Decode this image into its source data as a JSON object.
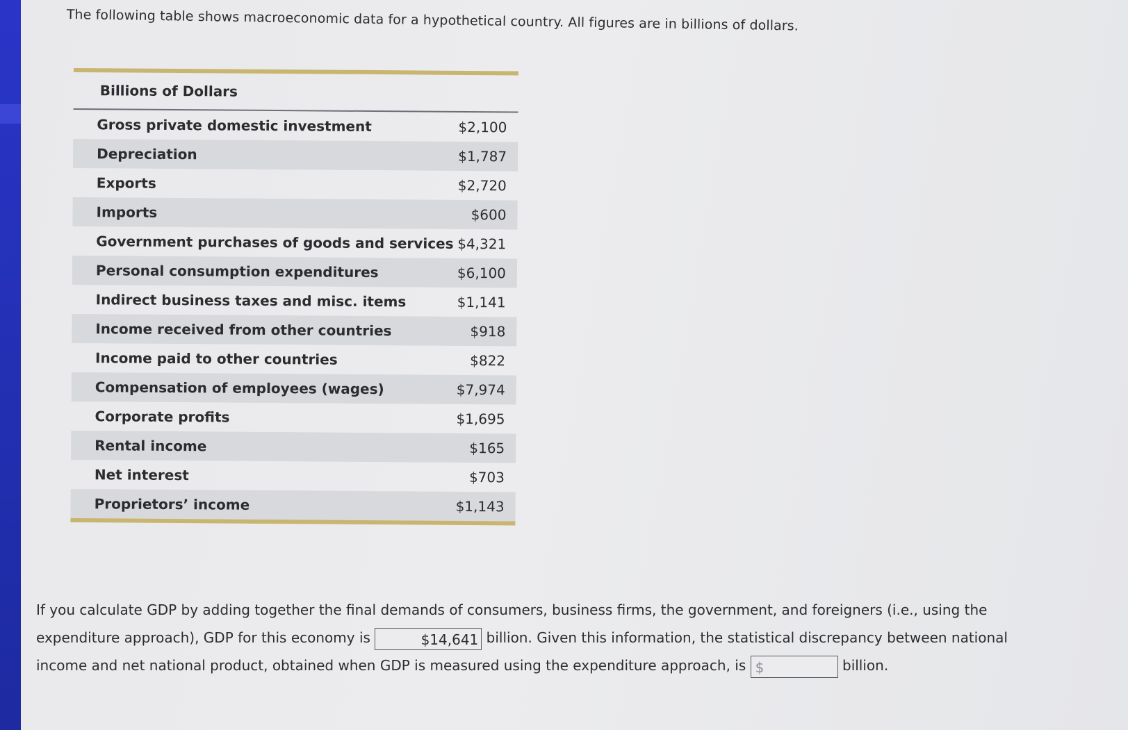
{
  "intro": "The following table shows macroeconomic data for a hypothetical country. All figures are in billions of dollars.",
  "table": {
    "header": "Billions of Dollars",
    "rows": [
      {
        "label": "Gross private domestic investment",
        "value": "$2,100"
      },
      {
        "label": "Depreciation",
        "value": "$1,787"
      },
      {
        "label": "Exports",
        "value": "$2,720"
      },
      {
        "label": "Imports",
        "value": "$600"
      },
      {
        "label": "Government purchases of goods and services",
        "value": "$4,321"
      },
      {
        "label": "Personal consumption expenditures",
        "value": "$6,100"
      },
      {
        "label": "Indirect business taxes and misc. items",
        "value": "$1,141"
      },
      {
        "label": "Income received from other countries",
        "value": "$918"
      },
      {
        "label": "Income paid to other countries",
        "value": "$822"
      },
      {
        "label": "Compensation of employees (wages)",
        "value": "$7,974"
      },
      {
        "label": "Corporate profits",
        "value": "$1,695"
      },
      {
        "label": "Rental income",
        "value": "$165"
      },
      {
        "label": "Net interest",
        "value": "$703"
      },
      {
        "label": "Proprietors’ income",
        "value": "$1,143"
      }
    ]
  },
  "question": {
    "part1": "If you calculate GDP by adding together the final demands of consumers, business firms, the government, and foreigners (i.e., using the expenditure approach), GDP for this economy is",
    "gdp_value": "$14,641",
    "part2": "billion. Given this information, the statistical discrepancy between national income and net national product, obtained when GDP is measured using the expenditure approach, is",
    "discrepancy_value": "$",
    "part3": "billion."
  }
}
